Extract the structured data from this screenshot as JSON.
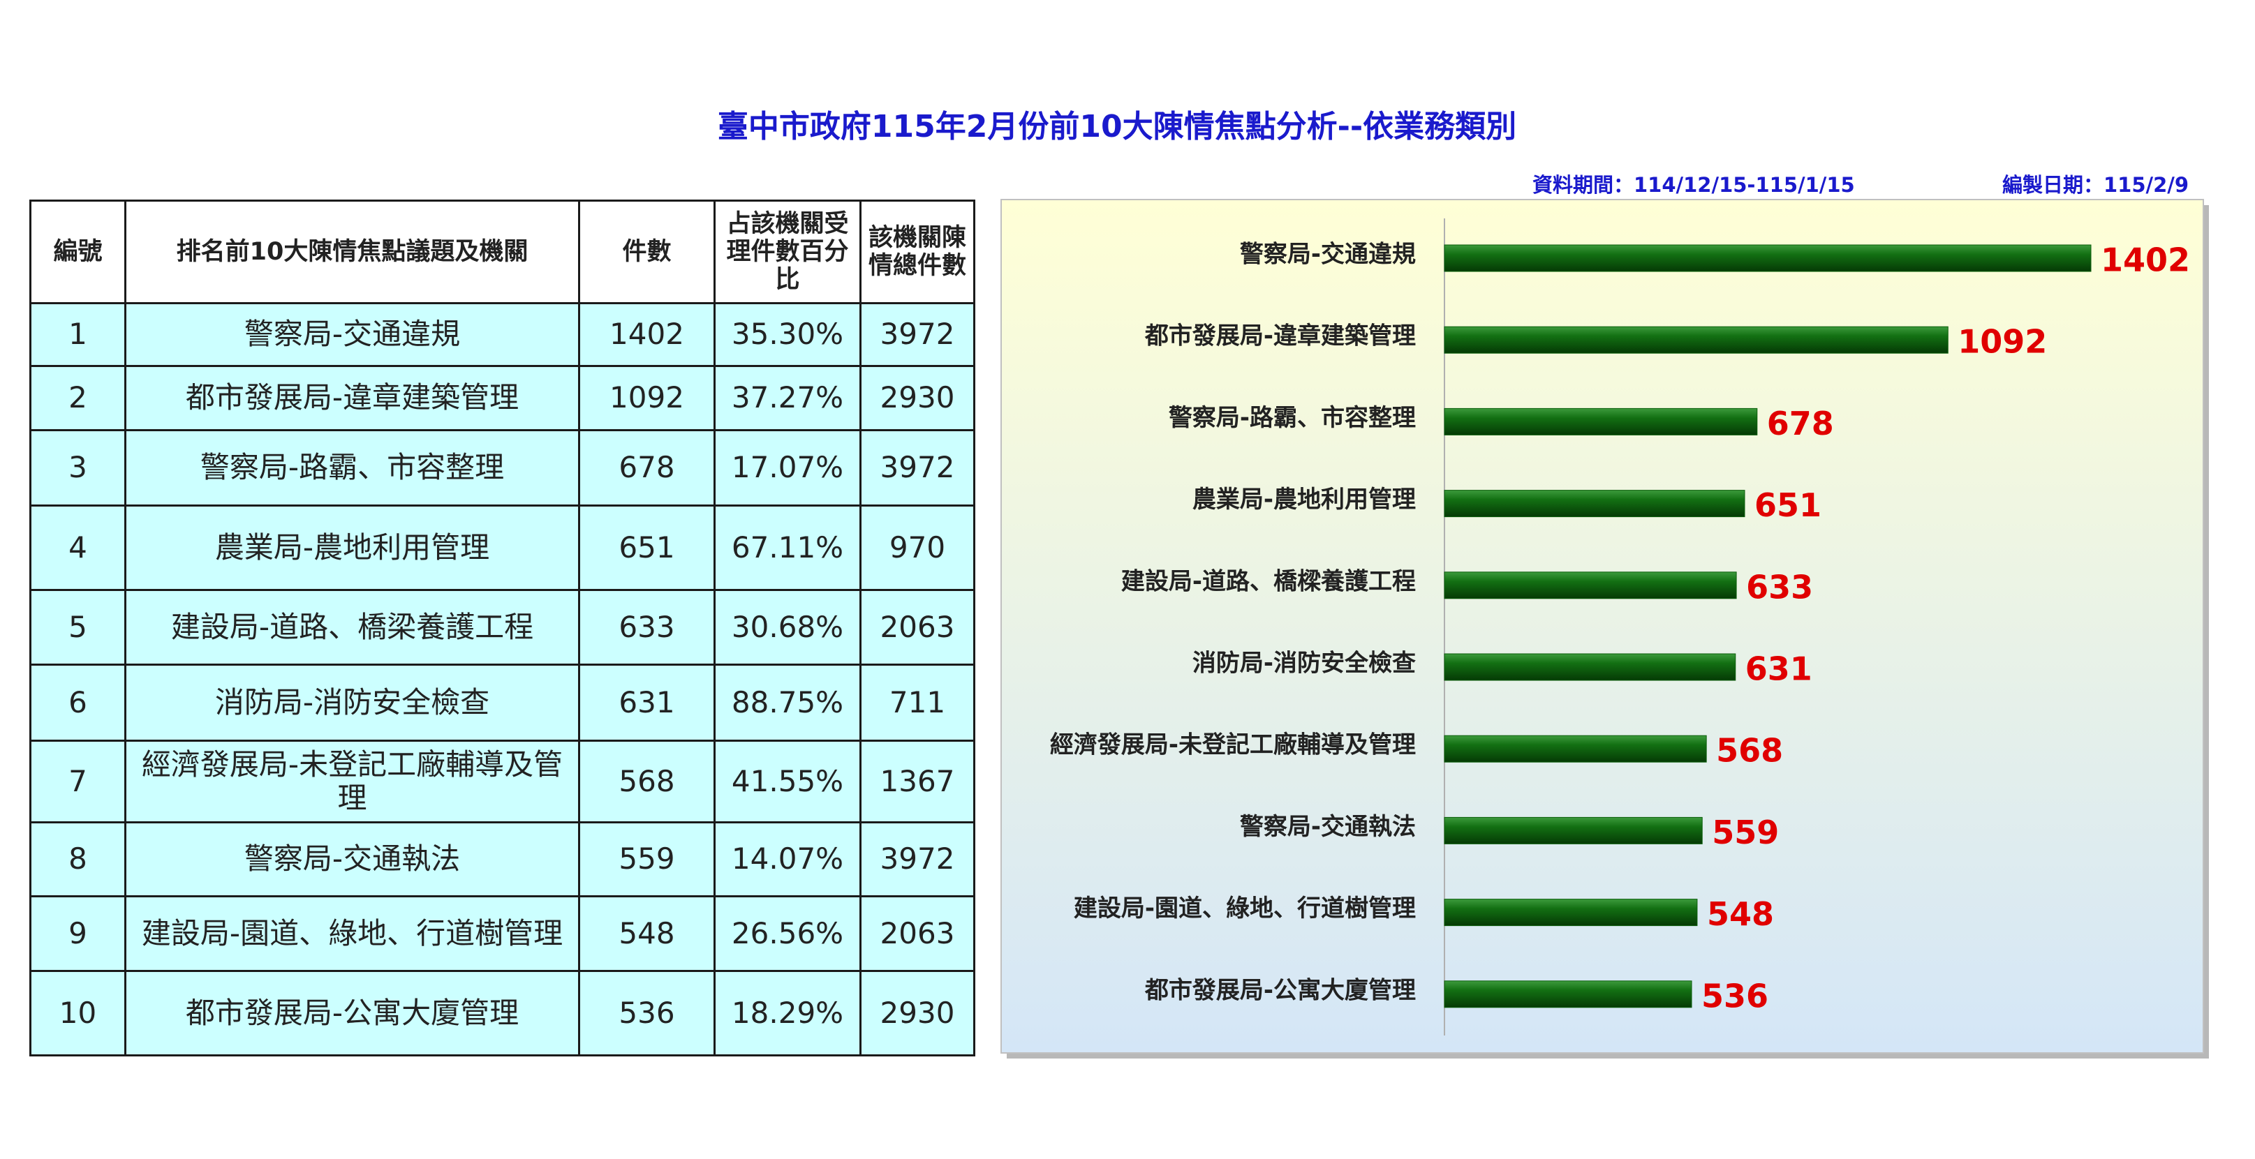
{
  "title": "臺中市政府115年2月份前10大陳情焦點分析--依業務類別",
  "data_period": "資料期間：114/12/15-115/1/15",
  "compiled_date": "編製日期：115/2/9",
  "table": {
    "header": [
      "編號",
      "排名前10大陳情焦點議題及機關",
      "件數",
      "占該機關受理件數百分比",
      "該機關陳情總件數"
    ],
    "rows": [
      [
        "1",
        "警察局-交通違規",
        "1402",
        "35.30%",
        "3972"
      ],
      [
        "2",
        "都市發展局-違章建築管理",
        "1092",
        "37.27%",
        "2930"
      ],
      [
        "3",
        "警察局-路霸、市容整理",
        "678",
        "17.07%",
        "3972"
      ],
      [
        "4",
        "農業局-農地利用管理",
        "651",
        "67.11%",
        "970"
      ],
      [
        "5",
        "建設局-道路、橋梁養護工程",
        "633",
        "30.68%",
        "2063"
      ],
      [
        "6",
        "消防局-消防安全檢查",
        "631",
        "88.75%",
        "711"
      ],
      [
        "7",
        "經濟發展局-未登記工廠輔導及管理",
        "568",
        "41.55%",
        "1367"
      ],
      [
        "8",
        "警察局-交通執法",
        "559",
        "14.07%",
        "3972"
      ],
      [
        "9",
        "建設局-園道、綠地、行道樹管理",
        "548",
        "26.56%",
        "2063"
      ],
      [
        "10",
        "都市發展局-公寓大廈管理",
        "536",
        "18.29%",
        "2930"
      ]
    ]
  },
  "chart_data": {
    "type": "bar",
    "orientation": "horizontal",
    "categories": [
      "警察局-交通違規",
      "都市發展局-違章建築管理",
      "警察局-路霸、市容整理",
      "農業局-農地利用管理",
      "建設局-道路、橋樑養護工程",
      "消防局-消防安全檢查",
      "經濟發展局-未登記工廠輔導及管理",
      "警察局-交通執法",
      "建設局-園道、綠地、行道樹管理",
      "都市發展局-公寓大廈管理"
    ],
    "values": [
      1402,
      1092,
      678,
      651,
      633,
      631,
      568,
      559,
      548,
      536
    ],
    "color": "#0b5e0b",
    "label_color": "#e00000"
  }
}
